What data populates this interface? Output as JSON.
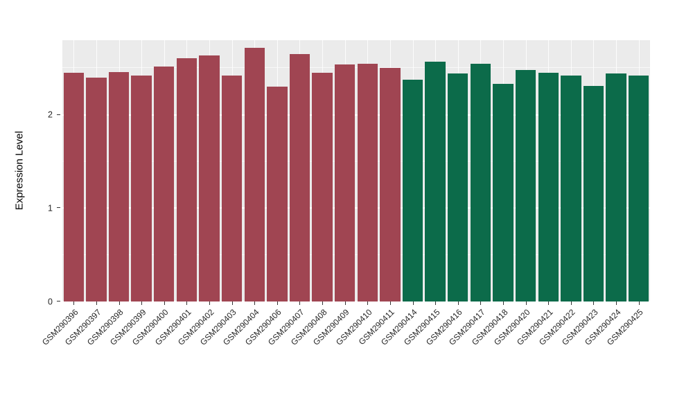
{
  "chart_data": {
    "type": "bar",
    "title": "",
    "xlabel": "",
    "ylabel": "Expression Level",
    "ylim": [
      0,
      2.8
    ],
    "y_major_ticks": [
      0,
      1,
      2
    ],
    "y_minor_ticks": [
      0.5,
      1.5,
      2.5
    ],
    "grid": true,
    "legend": false,
    "panel_bg": "#EBEBEB",
    "grid_color": "#FFFFFF",
    "axis_text_color": "#262626",
    "bar_width_fraction": 0.9,
    "categories": [
      "GSM290396",
      "GSM290397",
      "GSM290398",
      "GSM290399",
      "GSM290400",
      "GSM290401",
      "GSM290402",
      "GSM290403",
      "GSM290404",
      "GSM290406",
      "GSM290407",
      "GSM290408",
      "GSM290409",
      "GSM290410",
      "GSM290411",
      "GSM290414",
      "GSM290415",
      "GSM290416",
      "GSM290417",
      "GSM290418",
      "GSM290420",
      "GSM290421",
      "GSM290422",
      "GSM290423",
      "GSM290424",
      "GSM290425"
    ],
    "values": [
      2.45,
      2.4,
      2.46,
      2.42,
      2.52,
      2.61,
      2.64,
      2.42,
      2.72,
      2.3,
      2.65,
      2.45,
      2.54,
      2.55,
      2.5,
      2.38,
      2.57,
      2.44,
      2.55,
      2.33,
      2.48,
      2.45,
      2.42,
      2.31,
      2.44,
      2.42
    ],
    "bar_groups": [
      "maroon",
      "maroon",
      "maroon",
      "maroon",
      "maroon",
      "maroon",
      "maroon",
      "maroon",
      "maroon",
      "maroon",
      "maroon",
      "maroon",
      "maroon",
      "maroon",
      "maroon",
      "green",
      "green",
      "green",
      "green",
      "green",
      "green",
      "green",
      "green",
      "green",
      "green",
      "green"
    ],
    "group_colors": {
      "maroon": "#A04552",
      "green": "#0C6B4A"
    }
  }
}
